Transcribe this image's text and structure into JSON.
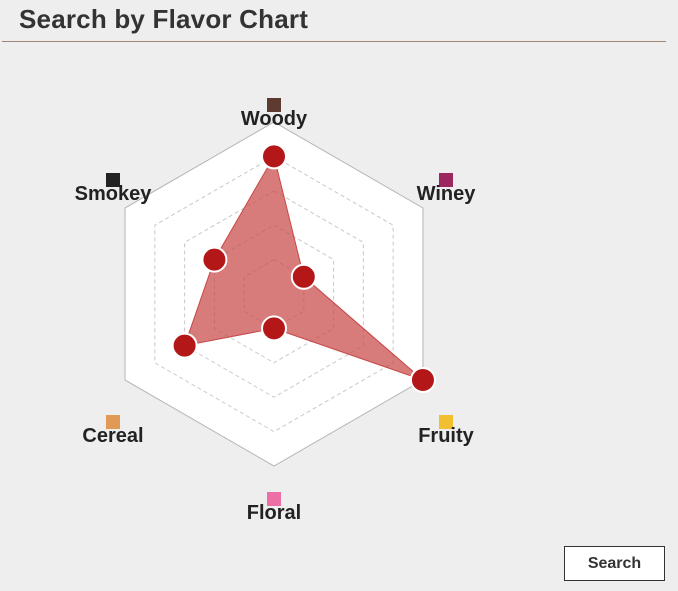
{
  "header": {
    "title": "Search by Flavor Chart"
  },
  "actions": {
    "search_label": "Search"
  },
  "chart_data": {
    "type": "radar",
    "title": "",
    "max": 5,
    "grid": true,
    "axes": [
      {
        "label": "Woody",
        "color": "#5e3b30"
      },
      {
        "label": "Winey",
        "color": "#9c2660"
      },
      {
        "label": "Fruity",
        "color": "#f0c031"
      },
      {
        "label": "Floral",
        "color": "#ec6fa6"
      },
      {
        "label": "Cereal",
        "color": "#e09a55"
      },
      {
        "label": "Smokey",
        "color": "#222222"
      }
    ],
    "values": [
      4,
      1,
      5,
      1,
      3,
      2
    ],
    "colors": {
      "area_fill": "#c84848",
      "marker": "#b31717",
      "grid_outer": "#b5b5b5",
      "grid_inner": "#c8c8c8"
    }
  }
}
